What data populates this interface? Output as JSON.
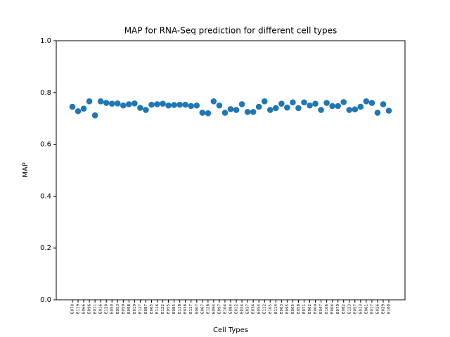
{
  "chart_data": {
    "type": "scatter",
    "title": "MAP for RNA-Seq prediction for different cell types",
    "xlabel": "Cell Types",
    "ylabel": "MAP",
    "categories": [
      "E070",
      "E119",
      "E066",
      "E096",
      "E011",
      "E016",
      "E120",
      "E050",
      "E053",
      "E059",
      "E098",
      "E019",
      "E127",
      "E087",
      "E065",
      "E116",
      "E122",
      "E055",
      "E085",
      "E118",
      "E038",
      "E117",
      "E007",
      "E067",
      "E128",
      "E094",
      "E097",
      "E104",
      "E084",
      "E012",
      "E024",
      "E037",
      "E034",
      "E054",
      "E112",
      "E105",
      "E114",
      "E003",
      "E095",
      "E005",
      "E058",
      "E071",
      "E062",
      "E000",
      "E047",
      "E106",
      "E004",
      "E079",
      "E082",
      "E123",
      "E057",
      "E013",
      "E061",
      "E017",
      "E026",
      "E029",
      "E100"
    ],
    "values": [
      0.745,
      0.728,
      0.738,
      0.766,
      0.712,
      0.766,
      0.76,
      0.757,
      0.758,
      0.75,
      0.755,
      0.758,
      0.741,
      0.733,
      0.753,
      0.755,
      0.757,
      0.75,
      0.752,
      0.753,
      0.753,
      0.748,
      0.75,
      0.722,
      0.72,
      0.766,
      0.75,
      0.722,
      0.736,
      0.733,
      0.755,
      0.725,
      0.725,
      0.745,
      0.766,
      0.733,
      0.74,
      0.757,
      0.742,
      0.762,
      0.74,
      0.762,
      0.75,
      0.757,
      0.733,
      0.76,
      0.748,
      0.748,
      0.763,
      0.733,
      0.735,
      0.745,
      0.766,
      0.76,
      0.722,
      0.755,
      0.73
    ],
    "color": "#1f77b4",
    "ylim": [
      0,
      1
    ],
    "yticks": [
      {
        "value": 0,
        "label": "0.0"
      },
      {
        "value": 0.2,
        "label": "0.2"
      },
      {
        "value": 0.4,
        "label": "0.4"
      },
      {
        "value": 0.6,
        "label": "0.6"
      },
      {
        "value": 0.8,
        "label": "0.8"
      },
      {
        "value": 1,
        "label": "1.0"
      }
    ]
  }
}
